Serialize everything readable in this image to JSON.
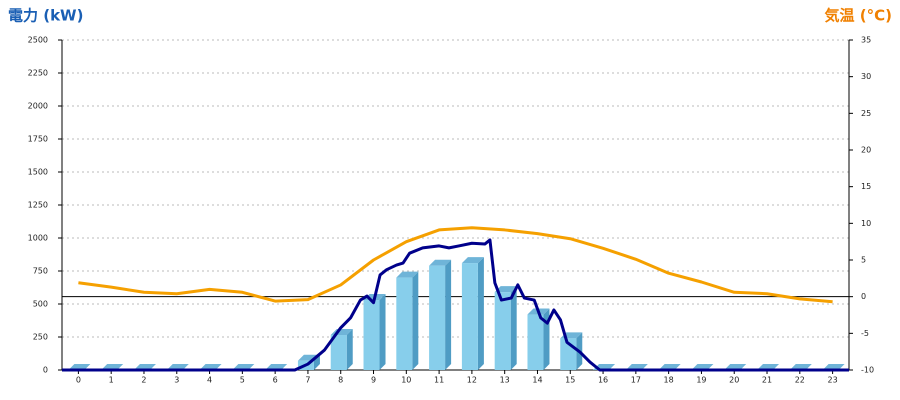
{
  "chart_data": {
    "type": "bar",
    "y_label": "電力 (kW)",
    "y2_label": "気温 (°C)",
    "xlim": [
      -0.5,
      23.5
    ],
    "xticks": [
      0,
      1,
      2,
      3,
      4,
      5,
      6,
      7,
      8,
      9,
      10,
      11,
      12,
      13,
      14,
      15,
      16,
      17,
      18,
      19,
      20,
      21,
      22,
      23
    ],
    "ylim": [
      0,
      2500
    ],
    "yticks": [
      0,
      250,
      500,
      750,
      1000,
      1250,
      1500,
      1750,
      2000,
      2250,
      2500
    ],
    "y2lim": [
      -10,
      35
    ],
    "y2ticks": [
      -10,
      -5,
      0,
      5,
      10,
      15,
      20,
      25,
      30,
      35
    ],
    "y2_refline": 0,
    "grid": true,
    "title_color": "#1a5fb4",
    "y2_title_color": "#f08000",
    "series": [
      {
        "type": "bar",
        "color": "#87ceeb",
        "x": [
          0,
          1,
          2,
          3,
          4,
          5,
          6,
          7,
          8,
          9,
          10,
          11,
          12,
          13,
          14,
          15,
          16,
          17,
          18,
          19,
          20,
          21,
          22,
          23
        ],
        "values": [
          0,
          0,
          0,
          0,
          0,
          0,
          0,
          70,
          265,
          530,
          700,
          790,
          810,
          590,
          420,
          240,
          0,
          0,
          0,
          0,
          0,
          0,
          0,
          0
        ]
      },
      {
        "type": "line",
        "color": "#00008b",
        "x": [
          -0.5,
          6.6,
          7,
          7.5,
          8,
          8.3,
          8.6,
          8.8,
          9,
          9.2,
          9.4,
          9.7,
          9.9,
          10.1,
          10.5,
          11,
          11.3,
          11.6,
          12,
          12.4,
          12.55,
          12.7,
          12.9,
          13.2,
          13.4,
          13.6,
          13.9,
          14.1,
          14.3,
          14.5,
          14.7,
          14.9,
          15.3,
          15.6,
          15.9,
          23.5
        ],
        "values": [
          0,
          0,
          45,
          150,
          320,
          395,
          530,
          560,
          510,
          720,
          760,
          795,
          810,
          885,
          925,
          940,
          925,
          940,
          960,
          955,
          985,
          660,
          530,
          545,
          645,
          545,
          530,
          395,
          355,
          455,
          380,
          210,
          135,
          60,
          0,
          0
        ]
      },
      {
        "type": "line",
        "axis": "y2",
        "color": "#f5a000",
        "x": [
          0,
          1,
          2,
          3,
          4,
          5,
          6,
          7,
          8,
          9,
          10,
          11,
          12,
          13,
          14,
          15,
          16,
          17,
          18,
          19,
          20,
          21,
          22,
          23
        ],
        "values": [
          1.9,
          1.3,
          0.6,
          0.4,
          1.0,
          0.6,
          -0.6,
          -0.4,
          1.6,
          5.0,
          7.5,
          9.1,
          9.4,
          9.1,
          8.6,
          7.9,
          6.6,
          5.1,
          3.2,
          2.0,
          0.6,
          0.4,
          -0.3,
          -0.7
        ]
      }
    ]
  }
}
